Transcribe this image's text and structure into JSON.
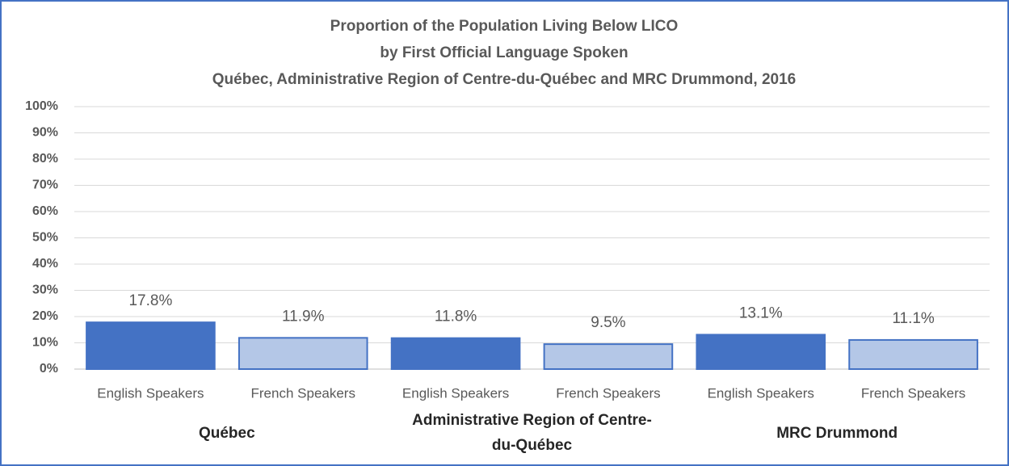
{
  "chart_data": {
    "type": "bar",
    "title": "Proportion of the Population Living Below LICO",
    "subtitle": [
      "by First Official Language Spoken",
      "Québec, Administrative Region of Centre-du-Québec and MRC Drummond, 2016"
    ],
    "categories": [
      "English Speakers",
      "French Speakers",
      "English Speakers",
      "French Speakers",
      "English Speakers",
      "French Speakers"
    ],
    "groups": [
      "Québec",
      "Administrative Region of Centre-du-Québec",
      "MRC Drummond"
    ],
    "values": [
      17.8,
      11.9,
      11.8,
      9.5,
      13.1,
      11.1
    ],
    "value_labels": [
      "17.8%",
      "11.9%",
      "11.8%",
      "9.5%",
      "13.1%",
      "11.1%"
    ],
    "colors": [
      "#4472c4",
      "#b4c7e7",
      "#4472c4",
      "#b4c7e7",
      "#4472c4",
      "#b4c7e7"
    ],
    "ylim": [
      0,
      100
    ],
    "yticks": [
      {
        "value": 0,
        "label": "0%"
      },
      {
        "value": 10,
        "label": "10%"
      },
      {
        "value": 20,
        "label": "20%"
      },
      {
        "value": 30,
        "label": "30%"
      },
      {
        "value": 40,
        "label": "40%"
      },
      {
        "value": 50,
        "label": "50%"
      },
      {
        "value": 60,
        "label": "60%"
      },
      {
        "value": 70,
        "label": "70%"
      },
      {
        "value": 80,
        "label": "80%"
      },
      {
        "value": 90,
        "label": "90%"
      },
      {
        "value": 100,
        "label": "100%"
      }
    ],
    "grid": true
  }
}
